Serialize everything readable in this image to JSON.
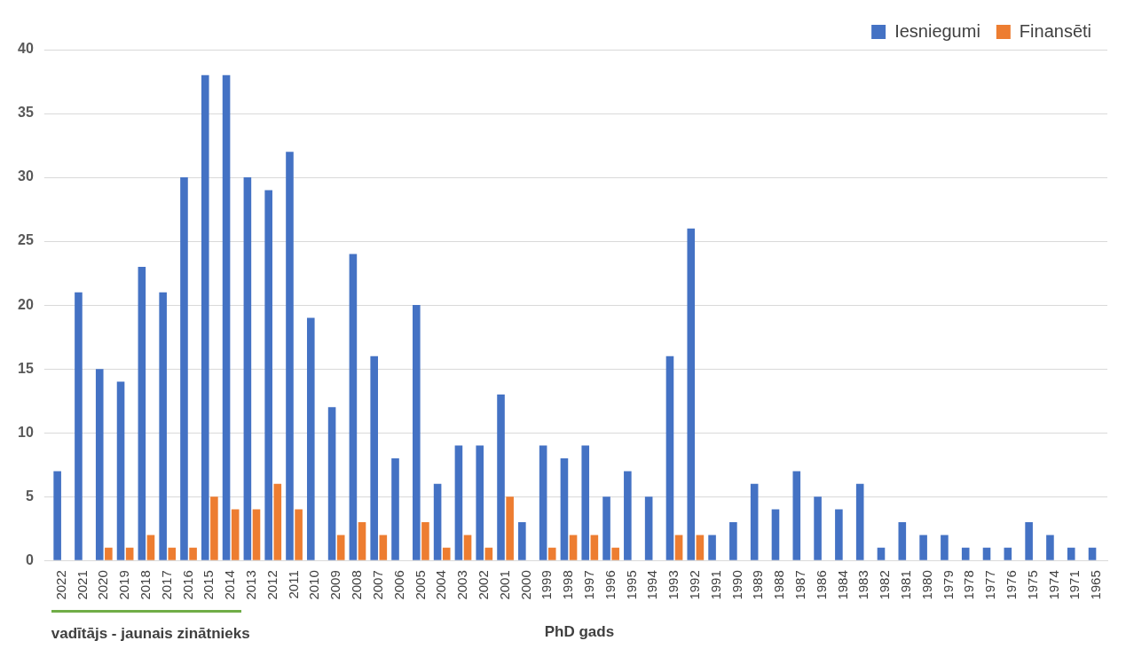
{
  "chart_data": {
    "type": "bar",
    "xlabel": "PhD gads",
    "categories": [
      "2022",
      "2021",
      "2020",
      "2019",
      "2018",
      "2017",
      "2016",
      "2015",
      "2014",
      "2013",
      "2012",
      "2011",
      "2010",
      "2009",
      "2008",
      "2007",
      "2006",
      "2005",
      "2004",
      "2003",
      "2002",
      "2001",
      "2000",
      "1999",
      "1998",
      "1997",
      "1996",
      "1995",
      "1994",
      "1993",
      "1992",
      "1991",
      "1990",
      "1989",
      "1988",
      "1987",
      "1986",
      "1984",
      "1983",
      "1982",
      "1981",
      "1980",
      "1979",
      "1978",
      "1977",
      "1976",
      "1975",
      "1974",
      "1971",
      "1965"
    ],
    "series": [
      {
        "name": "Iesniegumi",
        "color": "#4472c4",
        "values": [
          7,
          21,
          15,
          14,
          23,
          21,
          30,
          38,
          38,
          30,
          29,
          32,
          19,
          12,
          24,
          16,
          8,
          20,
          6,
          9,
          9,
          13,
          3,
          9,
          8,
          9,
          5,
          7,
          5,
          16,
          26,
          2,
          3,
          6,
          4,
          7,
          5,
          4,
          6,
          1,
          3,
          2,
          2,
          1,
          1,
          1,
          3,
          2,
          1,
          1
        ]
      },
      {
        "name": "Finansēti",
        "color": "#ed7d31",
        "values": [
          0,
          0,
          1,
          1,
          2,
          1,
          1,
          5,
          4,
          4,
          6,
          4,
          0,
          2,
          3,
          2,
          0,
          3,
          1,
          2,
          1,
          5,
          0,
          1,
          2,
          2,
          1,
          0,
          0,
          2,
          2,
          0,
          0,
          0,
          0,
          0,
          0,
          0,
          0,
          0,
          0,
          0,
          0,
          0,
          0,
          0,
          0,
          0,
          0,
          0
        ]
      }
    ],
    "ylim": [
      0,
      40
    ],
    "yticks": [
      0,
      5,
      10,
      15,
      20,
      25,
      30,
      35,
      40
    ],
    "grid": "y",
    "legend": "top right",
    "annotations": [
      "vadītājs - jaunais zinātnieks"
    ]
  }
}
